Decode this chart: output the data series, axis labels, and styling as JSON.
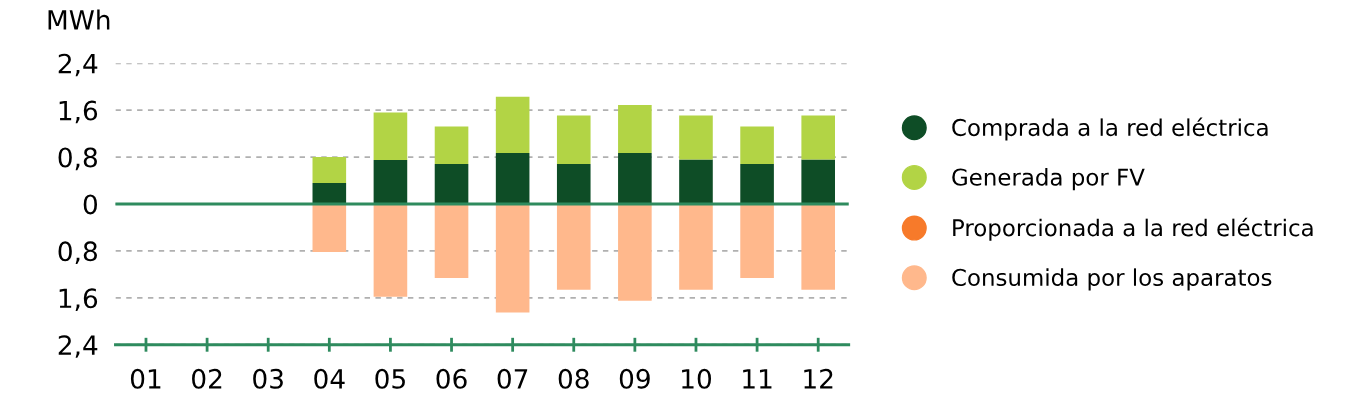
{
  "chart_data": {
    "type": "bar",
    "stacked": true,
    "ylabel": "MWh",
    "categories": [
      "01",
      "02",
      "03",
      "04",
      "05",
      "06",
      "07",
      "08",
      "09",
      "10",
      "11",
      "12"
    ],
    "series": [
      {
        "name": "Comprada a la red eléctrica",
        "color": "#0e4d26",
        "values": [
          null,
          null,
          null,
          0.36,
          0.75,
          0.68,
          0.87,
          0.68,
          0.87,
          0.76,
          0.68,
          0.76
        ]
      },
      {
        "name": "Generada por FV",
        "color": "#b2d445",
        "values": [
          null,
          null,
          null,
          0.44,
          0.81,
          0.64,
          0.96,
          0.83,
          0.82,
          0.75,
          0.64,
          0.75
        ]
      },
      {
        "name": "Proporcionada a la red eléctrica",
        "color": "#f77a2a",
        "values": [
          null,
          null,
          null,
          0,
          0,
          0,
          0,
          0,
          0,
          0,
          0,
          0
        ]
      },
      {
        "name": "Consumida por los aparatos",
        "color": "#ffb88c",
        "values": [
          null,
          null,
          null,
          -0.82,
          -1.58,
          -1.26,
          -1.85,
          -1.46,
          -1.65,
          -1.46,
          -1.26,
          -1.46
        ]
      }
    ],
    "ylim": [
      -2.4,
      2.4
    ],
    "yticks": [
      {
        "value": 2.4,
        "label": "2,4"
      },
      {
        "value": 1.6,
        "label": "1,6"
      },
      {
        "value": 0.8,
        "label": "0,8"
      },
      0,
      {
        "value": -0.8,
        "label": "0,8"
      },
      {
        "value": -1.6,
        "label": "1,6"
      },
      {
        "value": -2.4,
        "label": "2,4"
      }
    ],
    "grid": "y",
    "legend": "right",
    "ref_lines": [
      {
        "axis": "y",
        "value": 0,
        "color": "#2e8b5e"
      }
    ]
  }
}
